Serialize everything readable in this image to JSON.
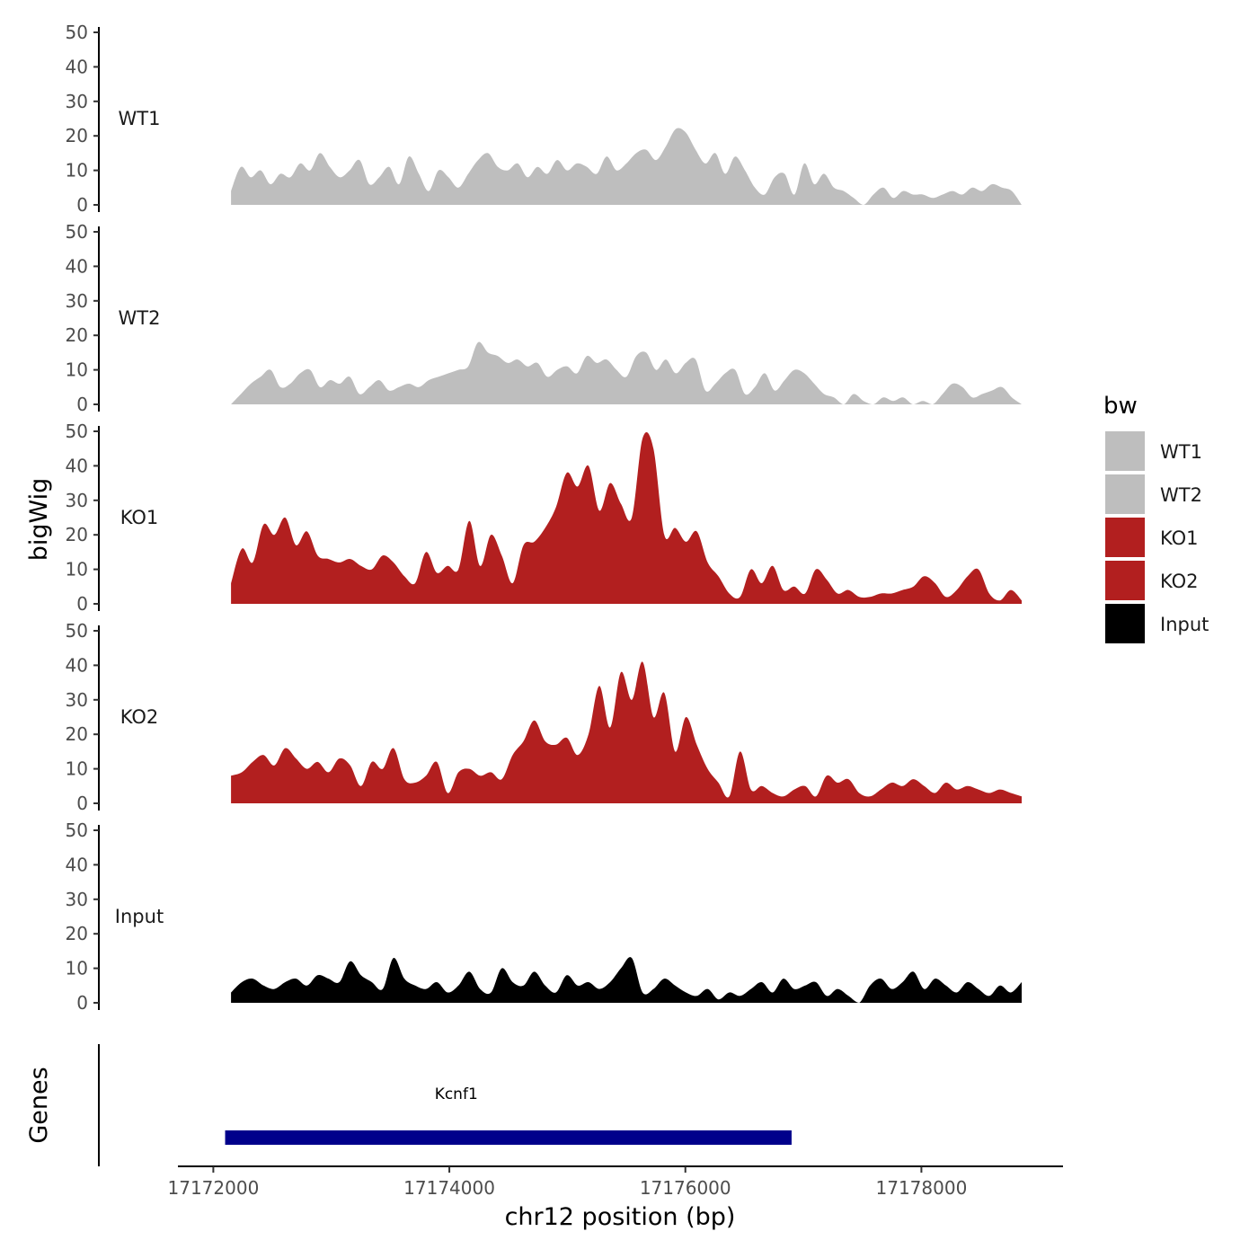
{
  "chart_data": {
    "type": "area",
    "title": "",
    "xlabel": "chr12 position (bp)",
    "ylabel": "bigWig",
    "gene_panel_label": "Genes",
    "chromosome": "chr12",
    "xlim": [
      17171700,
      17179200
    ],
    "data_range": [
      17172150,
      17178850
    ],
    "ylim": [
      0,
      50
    ],
    "y_ticks": [
      "0",
      "10",
      "20",
      "30",
      "40",
      "50"
    ],
    "x_ticks": [
      {
        "value": 17172000,
        "label": "17172000"
      },
      {
        "value": 17174000,
        "label": "17174000"
      },
      {
        "value": 17176000,
        "label": "17176000"
      },
      {
        "value": 17178000,
        "label": "17178000"
      }
    ],
    "legend": {
      "title": "bw",
      "position": "right",
      "entries": [
        {
          "label": "WT1",
          "color": "#bebebe"
        },
        {
          "label": "WT2",
          "color": "#bebebe"
        },
        {
          "label": "KO1",
          "color": "#b21f1f"
        },
        {
          "label": "KO2",
          "color": "#b21f1f"
        },
        {
          "label": "Input",
          "color": "#000000"
        }
      ]
    },
    "tracks": [
      {
        "name": "WT1",
        "color": "#bebebe",
        "x_start": 17172150,
        "x_end": 17178850,
        "values": [
          4,
          11,
          8,
          10,
          6,
          9,
          8,
          12,
          10,
          15,
          11,
          8,
          10,
          13,
          6,
          8,
          11,
          6,
          14,
          9,
          4,
          10,
          8,
          5,
          9,
          13,
          15,
          11,
          10,
          12,
          8,
          11,
          9,
          13,
          10,
          12,
          11,
          9,
          14,
          10,
          12,
          15,
          16,
          13,
          17,
          22,
          21,
          16,
          12,
          15,
          9,
          14,
          10,
          5,
          3,
          8,
          9,
          3,
          12,
          6,
          9,
          5,
          4,
          2,
          0,
          3,
          5,
          2,
          4,
          3,
          3,
          2,
          3,
          4,
          3,
          5,
          4,
          6,
          5,
          4,
          0
        ]
      },
      {
        "name": "WT2",
        "color": "#bebebe",
        "x_start": 17172150,
        "x_end": 17178850,
        "values": [
          0,
          3,
          6,
          8,
          10,
          5,
          6,
          9,
          10,
          5,
          7,
          6,
          8,
          3,
          5,
          7,
          4,
          5,
          6,
          5,
          7,
          8,
          9,
          10,
          11,
          18,
          15,
          14,
          12,
          13,
          11,
          12,
          8,
          10,
          11,
          9,
          14,
          12,
          13,
          10,
          8,
          14,
          15,
          10,
          13,
          9,
          12,
          13,
          4,
          6,
          9,
          10,
          3,
          5,
          9,
          4,
          7,
          10,
          9,
          6,
          3,
          2,
          0,
          3,
          1,
          0,
          2,
          1,
          2,
          0,
          1,
          0,
          3,
          6,
          5,
          2,
          3,
          4,
          5,
          2,
          0
        ]
      },
      {
        "name": "KO1",
        "color": "#b21f1f",
        "x_start": 17172150,
        "x_end": 17178850,
        "values": [
          6,
          16,
          12,
          23,
          20,
          25,
          17,
          21,
          14,
          13,
          12,
          13,
          11,
          10,
          14,
          12,
          8,
          6,
          15,
          9,
          11,
          10,
          24,
          11,
          20,
          14,
          6,
          17,
          18,
          22,
          28,
          38,
          34,
          40,
          27,
          35,
          29,
          25,
          48,
          45,
          20,
          22,
          18,
          21,
          12,
          8,
          3,
          2,
          10,
          6,
          11,
          4,
          5,
          3,
          10,
          7,
          3,
          4,
          2,
          2,
          3,
          3,
          4,
          5,
          8,
          6,
          2,
          4,
          8,
          10,
          3,
          1,
          4,
          1
        ]
      },
      {
        "name": "KO2",
        "color": "#b21f1f",
        "x_start": 17172150,
        "x_end": 17178850,
        "values": [
          8,
          9,
          12,
          14,
          11,
          16,
          13,
          10,
          12,
          9,
          13,
          11,
          5,
          12,
          10,
          16,
          7,
          6,
          8,
          12,
          3,
          9,
          10,
          8,
          9,
          7,
          14,
          18,
          24,
          18,
          17,
          19,
          14,
          20,
          34,
          22,
          38,
          30,
          41,
          25,
          32,
          15,
          25,
          17,
          10,
          6,
          2,
          15,
          4,
          5,
          3,
          2,
          4,
          5,
          2,
          8,
          6,
          7,
          3,
          2,
          4,
          6,
          5,
          7,
          5,
          3,
          6,
          4,
          5,
          4,
          3,
          4,
          3,
          2
        ]
      },
      {
        "name": "Input",
        "color": "#000000",
        "x_start": 17172150,
        "x_end": 17178850,
        "values": [
          3,
          6,
          7,
          5,
          4,
          6,
          7,
          5,
          8,
          7,
          6,
          12,
          8,
          6,
          4,
          13,
          7,
          5,
          4,
          6,
          3,
          5,
          9,
          4,
          3,
          10,
          6,
          5,
          9,
          5,
          3,
          8,
          5,
          6,
          4,
          6,
          10,
          13,
          3,
          4,
          7,
          5,
          3,
          2,
          4,
          1,
          3,
          2,
          4,
          6,
          3,
          7,
          4,
          5,
          6,
          2,
          4,
          2,
          0,
          5,
          7,
          4,
          6,
          9,
          4,
          7,
          5,
          3,
          6,
          4,
          2,
          5,
          3,
          6
        ]
      }
    ],
    "genes": [
      {
        "name": "Kcnf1",
        "start": 17172100,
        "end": 17176900,
        "color": "#00008b"
      }
    ]
  }
}
